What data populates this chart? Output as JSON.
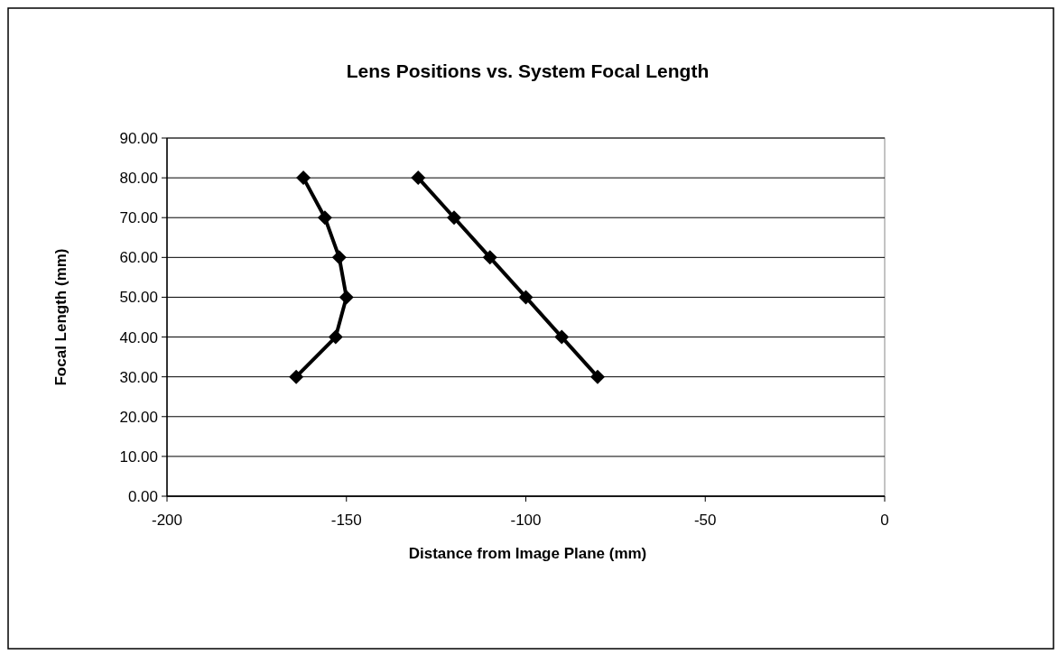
{
  "chart_data": {
    "type": "line",
    "title": "Lens Positions vs. System Focal Length",
    "xlabel": "Distance from Image Plane (mm)",
    "ylabel": "Focal Length (mm)",
    "xlim": [
      -200,
      0
    ],
    "xticks": [
      -200,
      -150,
      -100,
      -50,
      0
    ],
    "ylim": [
      0,
      90
    ],
    "yticks": [
      {
        "value": 0,
        "label": "0.00"
      },
      {
        "value": 10,
        "label": "10.00"
      },
      {
        "value": 20,
        "label": "20.00"
      },
      {
        "value": 30,
        "label": "30.00"
      },
      {
        "value": 40,
        "label": "40.00"
      },
      {
        "value": 50,
        "label": "50.00"
      },
      {
        "value": 60,
        "label": "60.00"
      },
      {
        "value": 70,
        "label": "70.00"
      },
      {
        "value": 80,
        "label": "80.00"
      },
      {
        "value": 90,
        "label": "90.00"
      }
    ],
    "grid": "y",
    "marker": "diamond",
    "line_style": "solid",
    "series": [
      {
        "color": "#000000",
        "x": [
          -162,
          -156,
          -152,
          -150,
          -153,
          -164
        ],
        "values": [
          80,
          70,
          60,
          50,
          40,
          30
        ]
      },
      {
        "color": "#000000",
        "x": [
          -130,
          -120,
          -110,
          -100,
          -90,
          -80
        ],
        "values": [
          80,
          70,
          60,
          50,
          40,
          30
        ]
      }
    ]
  }
}
